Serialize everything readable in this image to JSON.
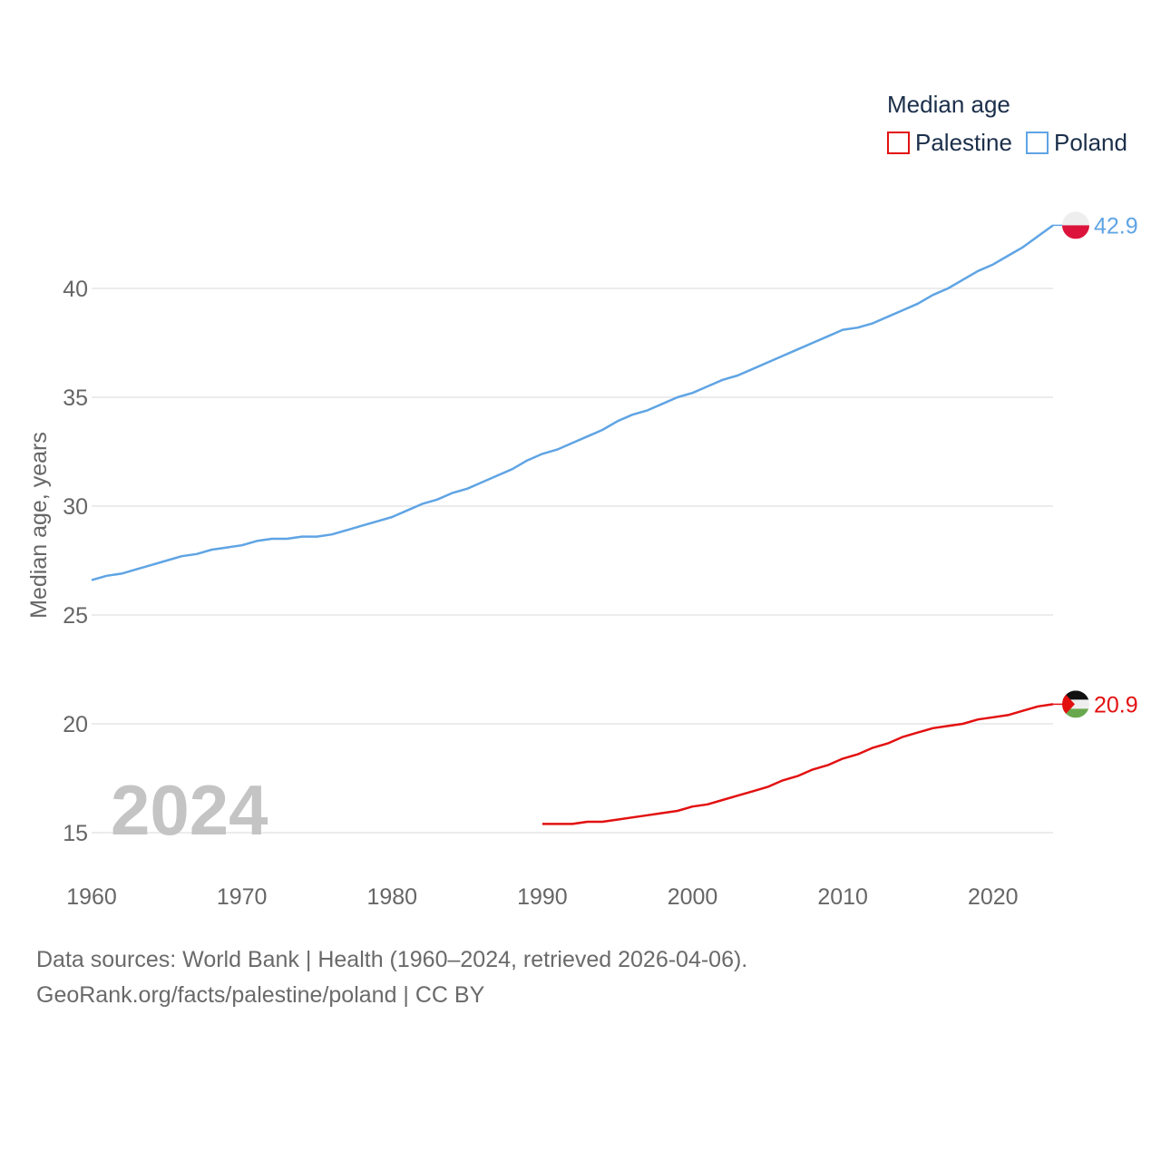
{
  "chart_data": {
    "type": "line",
    "legend_title": "Median age",
    "ylabel": "Median age, years",
    "xlabel": "",
    "xlim": [
      1960,
      2024
    ],
    "ylim": [
      15,
      44
    ],
    "x_ticks": [
      1960,
      1970,
      1980,
      1990,
      2000,
      2010,
      2020
    ],
    "y_ticks": [
      15,
      20,
      25,
      30,
      35,
      40
    ],
    "year_label": "2024",
    "series": [
      {
        "name": "Palestine",
        "color": "#e31010",
        "icon": "palestine-flag-icon",
        "end_label": "20.9",
        "points": [
          [
            1990,
            15.4
          ],
          [
            1991,
            15.4
          ],
          [
            1992,
            15.4
          ],
          [
            1993,
            15.5
          ],
          [
            1994,
            15.5
          ],
          [
            1995,
            15.6
          ],
          [
            1996,
            15.7
          ],
          [
            1997,
            15.8
          ],
          [
            1998,
            15.9
          ],
          [
            1999,
            16.0
          ],
          [
            2000,
            16.2
          ],
          [
            2001,
            16.3
          ],
          [
            2002,
            16.5
          ],
          [
            2003,
            16.7
          ],
          [
            2004,
            16.9
          ],
          [
            2005,
            17.1
          ],
          [
            2006,
            17.4
          ],
          [
            2007,
            17.6
          ],
          [
            2008,
            17.9
          ],
          [
            2009,
            18.1
          ],
          [
            2010,
            18.4
          ],
          [
            2011,
            18.6
          ],
          [
            2012,
            18.9
          ],
          [
            2013,
            19.1
          ],
          [
            2014,
            19.4
          ],
          [
            2015,
            19.6
          ],
          [
            2016,
            19.8
          ],
          [
            2017,
            19.9
          ],
          [
            2018,
            20.0
          ],
          [
            2019,
            20.2
          ],
          [
            2020,
            20.3
          ],
          [
            2021,
            20.4
          ],
          [
            2022,
            20.6
          ],
          [
            2023,
            20.8
          ],
          [
            2024,
            20.9
          ]
        ]
      },
      {
        "name": "Poland",
        "color": "#5fa4e4",
        "icon": "poland-flag-icon",
        "end_label": "42.9",
        "points": [
          [
            1960,
            26.6
          ],
          [
            1961,
            26.8
          ],
          [
            1962,
            26.9
          ],
          [
            1963,
            27.1
          ],
          [
            1964,
            27.3
          ],
          [
            1965,
            27.5
          ],
          [
            1966,
            27.7
          ],
          [
            1967,
            27.8
          ],
          [
            1968,
            28.0
          ],
          [
            1969,
            28.1
          ],
          [
            1970,
            28.2
          ],
          [
            1971,
            28.4
          ],
          [
            1972,
            28.5
          ],
          [
            1973,
            28.5
          ],
          [
            1974,
            28.6
          ],
          [
            1975,
            28.6
          ],
          [
            1976,
            28.7
          ],
          [
            1977,
            28.9
          ],
          [
            1978,
            29.1
          ],
          [
            1979,
            29.3
          ],
          [
            1980,
            29.5
          ],
          [
            1981,
            29.8
          ],
          [
            1982,
            30.1
          ],
          [
            1983,
            30.3
          ],
          [
            1984,
            30.6
          ],
          [
            1985,
            30.8
          ],
          [
            1986,
            31.1
          ],
          [
            1987,
            31.4
          ],
          [
            1988,
            31.7
          ],
          [
            1989,
            32.1
          ],
          [
            1990,
            32.4
          ],
          [
            1991,
            32.6
          ],
          [
            1992,
            32.9
          ],
          [
            1993,
            33.2
          ],
          [
            1994,
            33.5
          ],
          [
            1995,
            33.9
          ],
          [
            1996,
            34.2
          ],
          [
            1997,
            34.4
          ],
          [
            1998,
            34.7
          ],
          [
            1999,
            35.0
          ],
          [
            2000,
            35.2
          ],
          [
            2001,
            35.5
          ],
          [
            2002,
            35.8
          ],
          [
            2003,
            36.0
          ],
          [
            2004,
            36.3
          ],
          [
            2005,
            36.6
          ],
          [
            2006,
            36.9
          ],
          [
            2007,
            37.2
          ],
          [
            2008,
            37.5
          ],
          [
            2009,
            37.8
          ],
          [
            2010,
            38.1
          ],
          [
            2011,
            38.2
          ],
          [
            2012,
            38.4
          ],
          [
            2013,
            38.7
          ],
          [
            2014,
            39.0
          ],
          [
            2015,
            39.3
          ],
          [
            2016,
            39.7
          ],
          [
            2017,
            40.0
          ],
          [
            2018,
            40.4
          ],
          [
            2019,
            40.8
          ],
          [
            2020,
            41.1
          ],
          [
            2021,
            41.5
          ],
          [
            2022,
            41.9
          ],
          [
            2023,
            42.4
          ],
          [
            2024,
            42.9
          ]
        ]
      }
    ]
  },
  "footer": {
    "sources": "Data sources: World Bank | Health (1960–2024, retrieved 2026-04-06).",
    "credit": "GeoRank.org/facts/palestine/poland | CC BY"
  }
}
